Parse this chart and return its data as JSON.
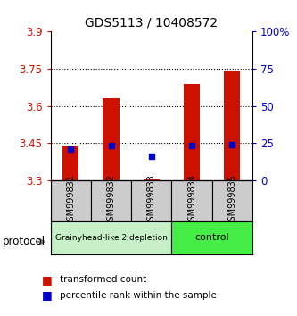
{
  "title": "GDS5113 / 10408572",
  "samples": [
    "GSM999831",
    "GSM999832",
    "GSM999833",
    "GSM999834",
    "GSM999835"
  ],
  "bar_bottoms": [
    3.3,
    3.3,
    3.3,
    3.3,
    3.3
  ],
  "bar_tops": [
    3.44,
    3.63,
    3.305,
    3.69,
    3.74
  ],
  "blue_squares": [
    3.425,
    3.44,
    3.395,
    3.44,
    3.445
  ],
  "ylim": [
    3.3,
    3.9
  ],
  "yticks_left": [
    3.3,
    3.45,
    3.6,
    3.75,
    3.9
  ],
  "yticks_right_labels": [
    "0",
    "25",
    "50",
    "75",
    "100%"
  ],
  "yticks_right_vals": [
    3.3,
    3.45,
    3.6,
    3.75,
    3.9
  ],
  "bar_color": "#cc1100",
  "square_color": "#0000cc",
  "group1_label": "Grainyhead-like 2 depletion",
  "group2_label": "control",
  "group1_color": "#c8f0c8",
  "group2_color": "#44ee44",
  "group1_samples": [
    0,
    1,
    2
  ],
  "group2_samples": [
    3,
    4
  ],
  "protocol_label": "protocol",
  "legend_red_label": "transformed count",
  "legend_blue_label": "percentile rank within the sample",
  "bar_width": 0.4,
  "sample_box_color": "#cccccc",
  "axis_box_color": "#000000"
}
